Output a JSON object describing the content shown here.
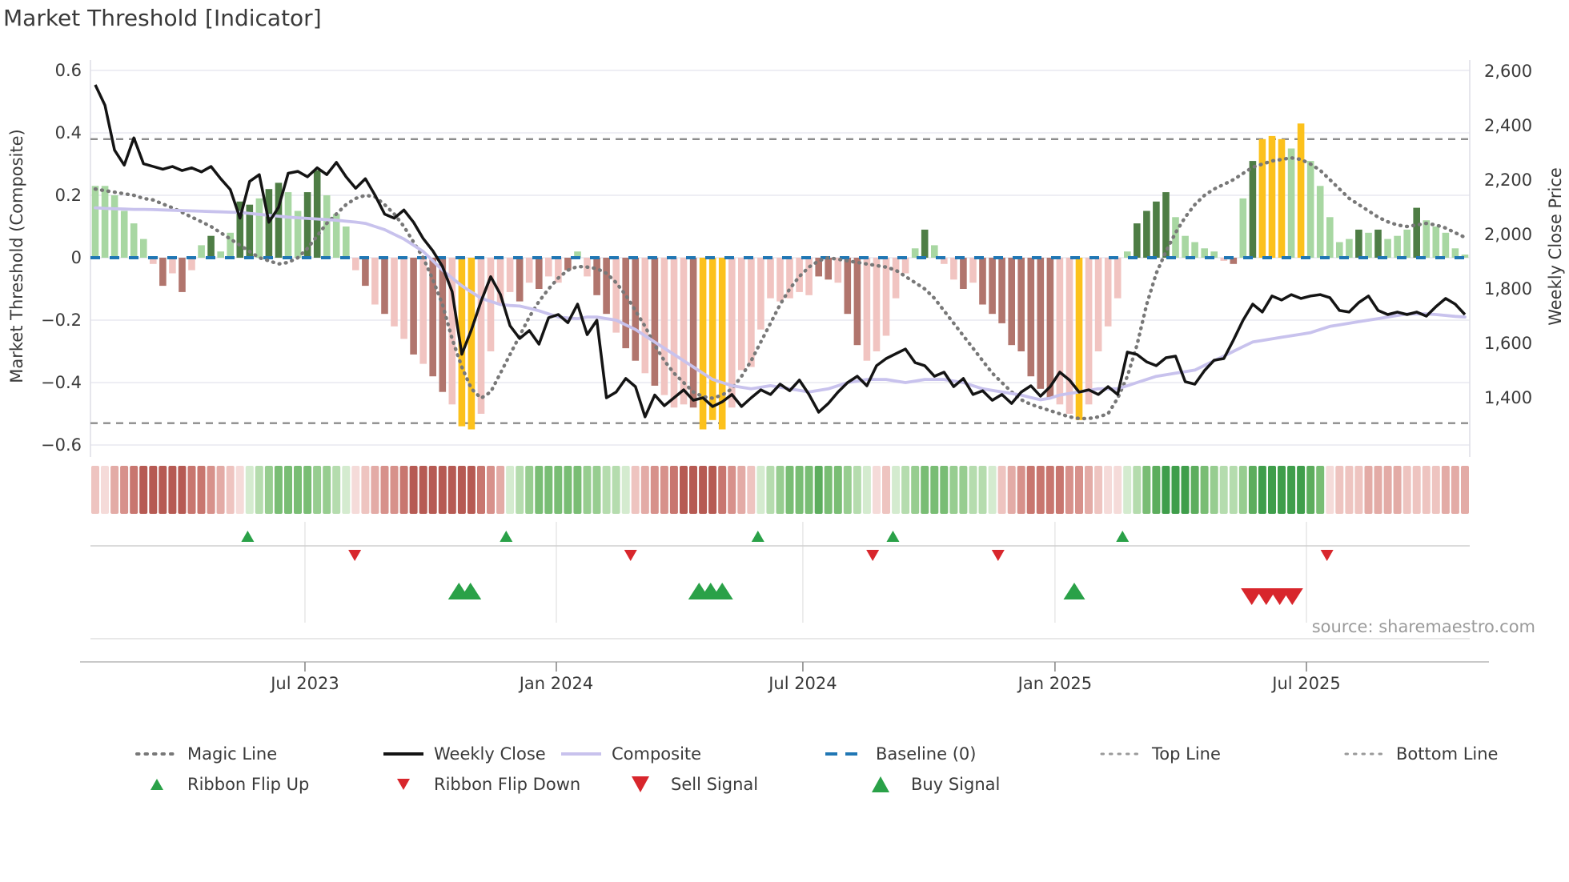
{
  "title": "Market Threshold [Indicator]",
  "source_text": "source: sharemaestro.com",
  "axes": {
    "left": {
      "title": "Market Threshold (Composite)",
      "ticks": [
        {
          "label": "0.6",
          "value": 0.6
        },
        {
          "label": "0.4",
          "value": 0.4
        },
        {
          "label": "0.2",
          "value": 0.2
        },
        {
          "label": "0",
          "value": 0
        },
        {
          "label": "−0.2",
          "value": -0.2
        },
        {
          "label": "−0.4",
          "value": -0.4
        },
        {
          "label": "−0.6",
          "value": -0.6
        }
      ]
    },
    "right": {
      "title": "Weekly Close Price",
      "ticks": [
        {
          "label": "2,600",
          "value": 2600
        },
        {
          "label": "2,400",
          "value": 2400
        },
        {
          "label": "2,200",
          "value": 2200
        },
        {
          "label": "2,000",
          "value": 2000
        },
        {
          "label": "1,800",
          "value": 1800
        },
        {
          "label": "1,600",
          "value": 1600
        },
        {
          "label": "1,400",
          "value": 1400
        }
      ]
    },
    "x": {
      "ticks": [
        {
          "label": "Jul 2023",
          "week": 21.74
        },
        {
          "label": "Jan 2024",
          "week": 47.8
        },
        {
          "label": "Jul 2024",
          "week": 73.36
        },
        {
          "label": "Jan 2025",
          "week": 99.5
        },
        {
          "label": "Jul 2025",
          "week": 125.57
        }
      ]
    }
  },
  "legend": {
    "row1": [
      {
        "label": "Magic Line",
        "type": "dotted",
        "color": "#787878"
      },
      {
        "label": "Weekly Close",
        "type": "solid",
        "color": "#141414"
      },
      {
        "label": "Composite",
        "type": "solid",
        "color": "#c8c2ed"
      },
      {
        "label": "Baseline (0)",
        "type": "dashed",
        "color": "#2077b4"
      },
      {
        "label": "Top Line",
        "type": "dotted",
        "color": "#9a9a9a"
      },
      {
        "label": "Bottom Line",
        "type": "dotted",
        "color": "#9a9a9a"
      }
    ],
    "row2": [
      {
        "label": "Ribbon Flip Up",
        "type": "triangle-up",
        "size": "small",
        "color": "#2aa148"
      },
      {
        "label": "Ribbon Flip Down",
        "type": "triangle-down",
        "size": "small",
        "color": "#d8262c"
      },
      {
        "label": "Sell Signal",
        "type": "triangle-down",
        "size": "large",
        "color": "#d8262c"
      },
      {
        "label": "Buy Signal",
        "type": "triangle-up",
        "size": "large",
        "color": "#2aa148"
      }
    ]
  },
  "chart_data": {
    "type": "combo: weekly bar histogram + dual-axis lines + heatmap ribbon + signal markers",
    "x_unit": "weeks; week 0 = left edge (≈ late Jan 2023), weekly bars through ≈ late Oct 2025",
    "n_weeks": 143,
    "left_axis": {
      "label": "Market Threshold (Composite)",
      "range": [
        -0.6,
        0.6
      ],
      "gridlines": [
        0.6,
        0.4,
        0.2,
        0,
        -0.2,
        -0.4,
        -0.6
      ]
    },
    "right_axis": {
      "label": "Weekly Close Price",
      "range": [
        1300,
        2650
      ],
      "ticks": [
        2600,
        2400,
        2200,
        2000,
        1800,
        1600,
        1400
      ]
    },
    "reference_lines": {
      "baseline": 0,
      "top_line": 0.38,
      "bottom_line": -0.53
    },
    "bar_color_map": {
      "lg": "#a8d7a2",
      "dg": "#4e7d45",
      "lr": "#f1c4c1",
      "dr": "#b1756d",
      "yl": "#fcc11c"
    },
    "line_colors": {
      "magic_line": "#787878",
      "weekly_close": "#141414",
      "composite": "#c8c2ed",
      "baseline": "#2077b4",
      "top_bottom": "#8c8c8c"
    },
    "series": {
      "composite_bars": {
        "values": [
          0.23,
          0.23,
          0.2,
          0.15,
          0.11,
          0.06,
          -0.02,
          -0.09,
          -0.05,
          -0.11,
          -0.04,
          0.04,
          0.07,
          0.02,
          0.08,
          0.18,
          0.17,
          0.19,
          0.22,
          0.24,
          0.21,
          0.15,
          0.21,
          0.28,
          0.2,
          0.14,
          0.1,
          -0.04,
          -0.09,
          -0.15,
          -0.18,
          -0.22,
          -0.26,
          -0.31,
          -0.34,
          -0.38,
          -0.43,
          -0.47,
          -0.54,
          -0.55,
          -0.5,
          -0.3,
          -0.15,
          -0.11,
          -0.14,
          -0.08,
          -0.1,
          -0.06,
          -0.08,
          -0.04,
          0.02,
          -0.06,
          -0.12,
          -0.18,
          -0.24,
          -0.29,
          -0.33,
          -0.37,
          -0.41,
          -0.44,
          -0.48,
          -0.47,
          -0.48,
          -0.55,
          -0.52,
          -0.55,
          -0.48,
          -0.36,
          -0.35,
          -0.23,
          -0.13,
          -0.14,
          -0.13,
          -0.11,
          -0.12,
          -0.06,
          -0.07,
          -0.08,
          -0.18,
          -0.28,
          -0.33,
          -0.3,
          -0.25,
          -0.13,
          -0.05,
          0.03,
          0.09,
          0.04,
          -0.02,
          -0.07,
          -0.1,
          -0.08,
          -0.15,
          -0.18,
          -0.21,
          -0.28,
          -0.3,
          -0.38,
          -0.42,
          -0.45,
          -0.47,
          -0.5,
          -0.52,
          -0.47,
          -0.3,
          -0.22,
          -0.13,
          0.02,
          0.11,
          0.15,
          0.18,
          0.21,
          0.13,
          0.07,
          0.05,
          0.03,
          0.02,
          -0.01,
          -0.02,
          0.19,
          0.31,
          0.38,
          0.39,
          0.38,
          0.35,
          0.43,
          0.31,
          0.23,
          0.13,
          0.05,
          0.06,
          0.09,
          0.08,
          0.09,
          0.06,
          0.07,
          0.09,
          0.16,
          0.12,
          0.1,
          0.08,
          0.03,
          0.01
        ],
        "colors": [
          "lg",
          "lg",
          "lg",
          "lg",
          "lg",
          "lg",
          "lr",
          "dr",
          "lr",
          "dr",
          "lr",
          "lg",
          "dg",
          "lg",
          "lg",
          "dg",
          "dg",
          "lg",
          "dg",
          "dg",
          "lg",
          "lg",
          "dg",
          "dg",
          "lg",
          "lg",
          "lg",
          "lr",
          "dr",
          "lr",
          "dr",
          "lr",
          "lr",
          "dr",
          "lr",
          "dr",
          "dr",
          "lr",
          "yl",
          "yl",
          "lr",
          "lr",
          "lr",
          "lr",
          "dr",
          "lr",
          "dr",
          "lr",
          "lr",
          "dr",
          "lg",
          "lr",
          "dr",
          "dr",
          "lr",
          "dr",
          "dr",
          "lr",
          "dr",
          "lr",
          "lr",
          "lr",
          "dr",
          "yl",
          "yl",
          "yl",
          "lr",
          "lr",
          "lr",
          "lr",
          "lr",
          "lr",
          "lr",
          "lr",
          "lr",
          "dr",
          "dr",
          "lr",
          "dr",
          "dr",
          "lr",
          "lr",
          "lr",
          "lr",
          "lr",
          "lg",
          "dg",
          "lg",
          "lr",
          "lr",
          "dr",
          "lr",
          "dr",
          "dr",
          "dr",
          "dr",
          "dr",
          "dr",
          "dr",
          "dr",
          "lr",
          "lr",
          "yl",
          "lr",
          "lr",
          "lr",
          "lr",
          "lg",
          "dg",
          "dg",
          "dg",
          "dg",
          "lg",
          "lg",
          "lg",
          "lg",
          "lg",
          "lr",
          "dr",
          "lg",
          "dg",
          "yl",
          "yl",
          "yl",
          "lg",
          "yl",
          "lg",
          "lg",
          "lg",
          "lg",
          "lg",
          "dg",
          "lg",
          "dg",
          "lg",
          "lg",
          "lg",
          "dg",
          "lg",
          "lg",
          "lg",
          "lg",
          "lg"
        ]
      },
      "weekly_close": [
        2550,
        2475,
        2310,
        2255,
        2355,
        2260,
        2250,
        2240,
        2250,
        2235,
        2245,
        2230,
        2250,
        2205,
        2165,
        2060,
        2195,
        2220,
        2045,
        2100,
        2225,
        2232,
        2212,
        2245,
        2220,
        2265,
        2212,
        2170,
        2205,
        2145,
        2075,
        2060,
        2090,
        2045,
        1985,
        1940,
        1882,
        1790,
        1560,
        1650,
        1755,
        1845,
        1780,
        1665,
        1618,
        1647,
        1597,
        1694,
        1706,
        1676,
        1744,
        1632,
        1685,
        1400,
        1421,
        1471,
        1441,
        1330,
        1410,
        1371,
        1400,
        1429,
        1391,
        1400,
        1368,
        1385,
        1412,
        1368,
        1400,
        1429,
        1412,
        1450,
        1426,
        1465,
        1412,
        1347,
        1379,
        1421,
        1456,
        1479,
        1444,
        1518,
        1544,
        1562,
        1579,
        1529,
        1518,
        1479,
        1494,
        1441,
        1471,
        1412,
        1426,
        1391,
        1412,
        1379,
        1421,
        1444,
        1406,
        1441,
        1494,
        1465,
        1421,
        1429,
        1412,
        1441,
        1412,
        1568,
        1559,
        1532,
        1518,
        1547,
        1553,
        1459,
        1450,
        1500,
        1538,
        1544,
        1612,
        1685,
        1744,
        1715,
        1774,
        1759,
        1779,
        1765,
        1774,
        1779,
        1768,
        1721,
        1715,
        1750,
        1774,
        1721,
        1706,
        1715,
        1706,
        1715,
        1700,
        1735,
        1765,
        1744,
        1706
      ],
      "composite_line": [
        0.16,
        0.158,
        0.157,
        0.156,
        0.155,
        0.155,
        0.154,
        0.153,
        0.152,
        0.151,
        0.15,
        0.149,
        0.148,
        0.147,
        0.146,
        0.145,
        0.142,
        0.139,
        0.136,
        0.133,
        0.13,
        0.128,
        0.126,
        0.124,
        0.122,
        0.12,
        0.117,
        0.114,
        0.11,
        0.1,
        0.09,
        0.075,
        0.06,
        0.04,
        0.02,
        -0.01,
        -0.04,
        -0.065,
        -0.09,
        -0.11,
        -0.13,
        -0.14,
        -0.15,
        -0.153,
        -0.155,
        -0.162,
        -0.17,
        -0.18,
        -0.19,
        -0.193,
        -0.195,
        -0.19,
        -0.19,
        -0.195,
        -0.2,
        -0.215,
        -0.23,
        -0.25,
        -0.27,
        -0.29,
        -0.31,
        -0.33,
        -0.35,
        -0.37,
        -0.39,
        -0.4,
        -0.41,
        -0.415,
        -0.42,
        -0.415,
        -0.41,
        -0.415,
        -0.42,
        -0.425,
        -0.43,
        -0.425,
        -0.42,
        -0.41,
        -0.4,
        -0.395,
        -0.39,
        -0.39,
        -0.39,
        -0.395,
        -0.4,
        -0.395,
        -0.39,
        -0.39,
        -0.39,
        -0.395,
        -0.4,
        -0.41,
        -0.42,
        -0.425,
        -0.43,
        -0.435,
        -0.44,
        -0.448,
        -0.455,
        -0.45,
        -0.44,
        -0.435,
        -0.43,
        -0.425,
        -0.42,
        -0.42,
        -0.42,
        -0.41,
        -0.4,
        -0.39,
        -0.38,
        -0.375,
        -0.37,
        -0.365,
        -0.36,
        -0.345,
        -0.33,
        -0.315,
        -0.3,
        -0.285,
        -0.27,
        -0.265,
        -0.26,
        -0.255,
        -0.25,
        -0.245,
        -0.24,
        -0.23,
        -0.22,
        -0.215,
        -0.21,
        -0.205,
        -0.2,
        -0.195,
        -0.19,
        -0.185,
        -0.18,
        -0.18,
        -0.18,
        -0.182,
        -0.185,
        -0.188,
        -0.19
      ],
      "magic_line": [
        0.22,
        0.215,
        0.21,
        0.205,
        0.2,
        0.19,
        0.185,
        0.172,
        0.16,
        0.145,
        0.13,
        0.115,
        0.1,
        0.08,
        0.06,
        0.04,
        0.02,
        0.0,
        -0.01,
        -0.02,
        -0.015,
        0.0,
        0.03,
        0.07,
        0.11,
        0.14,
        0.17,
        0.19,
        0.2,
        0.195,
        0.17,
        0.14,
        0.1,
        0.05,
        0.0,
        -0.07,
        -0.15,
        -0.26,
        -0.35,
        -0.42,
        -0.45,
        -0.43,
        -0.37,
        -0.31,
        -0.25,
        -0.19,
        -0.14,
        -0.1,
        -0.065,
        -0.04,
        -0.028,
        -0.03,
        -0.035,
        -0.05,
        -0.08,
        -0.12,
        -0.17,
        -0.22,
        -0.28,
        -0.33,
        -0.37,
        -0.4,
        -0.43,
        -0.445,
        -0.45,
        -0.44,
        -0.42,
        -0.38,
        -0.33,
        -0.27,
        -0.21,
        -0.15,
        -0.1,
        -0.06,
        -0.03,
        -0.01,
        0.0,
        -0.005,
        -0.01,
        -0.015,
        -0.02,
        -0.025,
        -0.03,
        -0.04,
        -0.06,
        -0.08,
        -0.1,
        -0.13,
        -0.17,
        -0.21,
        -0.25,
        -0.29,
        -0.33,
        -0.37,
        -0.4,
        -0.43,
        -0.455,
        -0.47,
        -0.48,
        -0.49,
        -0.5,
        -0.51,
        -0.515,
        -0.515,
        -0.51,
        -0.5,
        -0.45,
        -0.38,
        -0.28,
        -0.15,
        -0.05,
        0.02,
        0.08,
        0.13,
        0.17,
        0.2,
        0.22,
        0.235,
        0.25,
        0.27,
        0.29,
        0.3,
        0.31,
        0.315,
        0.32,
        0.315,
        0.3,
        0.28,
        0.25,
        0.22,
        0.19,
        0.17,
        0.15,
        0.13,
        0.115,
        0.105,
        0.1,
        0.105,
        0.11,
        0.105,
        0.095,
        0.08,
        0.065
      ]
    },
    "ribbon": {
      "description": "weekly regime heatmap, red = bearish, green = bullish, intensity -3..3",
      "values": [
        -1,
        -0.5,
        -1.5,
        -2,
        -2.5,
        -3,
        -3,
        -3,
        -3,
        -3,
        -2.5,
        -2.5,
        -2,
        -1.5,
        -1,
        -0.5,
        0.5,
        1,
        1.5,
        2,
        2,
        2,
        2,
        1.5,
        1.5,
        1,
        0.5,
        -0.5,
        -1,
        -1.5,
        -2,
        -2,
        -2.5,
        -3,
        -3,
        -3,
        -3,
        -3,
        -3,
        -3,
        -2.5,
        -2,
        -1.5,
        0.5,
        1,
        1.5,
        2,
        2,
        2,
        2,
        2,
        1.5,
        1.5,
        1,
        1,
        0.5,
        -1,
        -1.5,
        -2,
        -2,
        -2.5,
        -3,
        -3,
        -3,
        -3,
        -2.5,
        -2,
        -1.5,
        -1,
        0.5,
        1,
        1.5,
        2,
        2,
        2,
        2.5,
        2,
        2,
        1.5,
        1,
        0.5,
        -0.5,
        -1,
        0.5,
        1,
        1.5,
        2,
        2,
        2,
        1.5,
        1.5,
        1,
        1,
        0.5,
        -1,
        -1.5,
        -2,
        -2.5,
        -2.5,
        -2.5,
        -2.5,
        -2,
        -2,
        -1.5,
        -1,
        -0.5,
        -0.5,
        0.5,
        1,
        2,
        2.5,
        3,
        3,
        3,
        2.5,
        2,
        1.5,
        1,
        1,
        1.5,
        2.5,
        3,
        3,
        3,
        3,
        3,
        2.5,
        2,
        -0.5,
        -1,
        -1,
        -1,
        -1.5,
        -1.5,
        -1.5,
        -1.5,
        -1,
        -1,
        -1,
        -1,
        -1.5,
        -1.5,
        -1.5
      ],
      "color_scale": {
        "3": "#3f9e4b",
        "2.5": "#5cad5d",
        "2": "#79bd74",
        "1.5": "#97cd90",
        "1": "#b5dcae",
        "0.5": "#d4ebcf",
        "-0.5": "#f5dbd9",
        "-1": "#eec4c0",
        "-1.5": "#e3aba6",
        "-2": "#d7918b",
        "-2.5": "#c8766f",
        "-3": "#b65a53"
      }
    },
    "signals": {
      "ribbon_flip_up_weeks": [
        15.8,
        42.6,
        68.7,
        82.7,
        106.5
      ],
      "ribbon_flip_down_weeks": [
        26.9,
        55.5,
        80.6,
        93.6,
        127.7
      ],
      "buy_signal_weeks": [
        37.7,
        38.9,
        62.6,
        63.8,
        65.0,
        101.5
      ],
      "sell_signal_weeks": [
        119.9,
        121.4,
        122.8,
        124.1
      ],
      "marker_colors": {
        "up": "#2aa148",
        "down": "#d8262c"
      }
    }
  }
}
